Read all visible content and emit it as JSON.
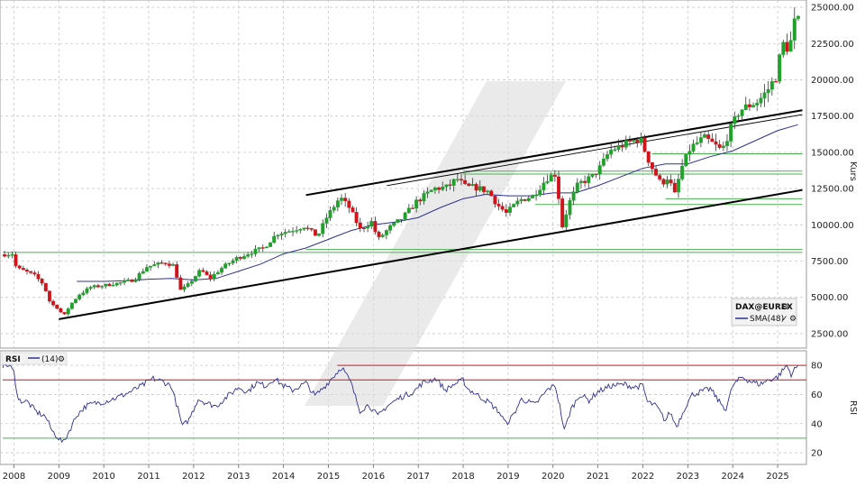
{
  "chart_data": [
    {
      "type": "candlestick",
      "title": "",
      "ylabel": "Kurs",
      "ylim": [
        1500,
        25500
      ],
      "y_ticks": [
        2500,
        5000,
        7500,
        10000,
        12500,
        15000,
        17500,
        20000,
        22500,
        25000
      ],
      "y_tick_labels": [
        "2500.00",
        "5000.00",
        "7500.00",
        "10000.00",
        "12500.00",
        "15000.00",
        "17500.00",
        "20000.00",
        "22500.00",
        "25000.00"
      ],
      "x_range": [
        2007.75,
        2025.5
      ],
      "x_ticks": [
        2008,
        2009,
        2010,
        2011,
        2012,
        2013,
        2014,
        2015,
        2016,
        2017,
        2018,
        2019,
        2020,
        2021,
        2022,
        2023,
        2024,
        2025
      ],
      "x_tick_labels": [
        "2008",
        "2009",
        "2010",
        "2011",
        "2012",
        "2013",
        "2014",
        "2015",
        "2016",
        "2017",
        "2018",
        "2019",
        "2020",
        "2021",
        "2022",
        "2023",
        "2024",
        "2025"
      ],
      "grid": true,
      "legend": {
        "placement": "bottom-right",
        "instrument": "DAX@EUREX",
        "series": [
          {
            "name": "SMA(48)",
            "color": "#2e3192"
          }
        ]
      },
      "colors": {
        "up": "#1fa12a",
        "down": "#d0141b",
        "sma": "#2e3192",
        "trend": "#000000",
        "support": "#4caf50"
      },
      "price_path": [
        [
          2007.75,
          7950
        ],
        [
          2008.0,
          8000
        ],
        [
          2008.1,
          7000
        ],
        [
          2008.3,
          6800
        ],
        [
          2008.5,
          6500
        ],
        [
          2008.7,
          5900
        ],
        [
          2008.85,
          4600
        ],
        [
          2009.0,
          4300
        ],
        [
          2009.15,
          3700
        ],
        [
          2009.3,
          4500
        ],
        [
          2009.5,
          5200
        ],
        [
          2009.75,
          5700
        ],
        [
          2010.0,
          5800
        ],
        [
          2010.4,
          6000
        ],
        [
          2010.7,
          6200
        ],
        [
          2011.0,
          7100
        ],
        [
          2011.4,
          7400
        ],
        [
          2011.6,
          7200
        ],
        [
          2011.75,
          5500
        ],
        [
          2011.9,
          5800
        ],
        [
          2012.2,
          6900
        ],
        [
          2012.4,
          6300
        ],
        [
          2012.7,
          7100
        ],
        [
          2013.0,
          7700
        ],
        [
          2013.4,
          8200
        ],
        [
          2013.6,
          8400
        ],
        [
          2013.9,
          9400
        ],
        [
          2014.2,
          9600
        ],
        [
          2014.5,
          9900
        ],
        [
          2014.8,
          9200
        ],
        [
          2015.0,
          10500
        ],
        [
          2015.3,
          11900
        ],
        [
          2015.5,
          11200
        ],
        [
          2015.75,
          9700
        ],
        [
          2016.0,
          10200
        ],
        [
          2016.15,
          9000
        ],
        [
          2016.4,
          9800
        ],
        [
          2016.7,
          10500
        ],
        [
          2017.0,
          11600
        ],
        [
          2017.4,
          12500
        ],
        [
          2017.7,
          12600
        ],
        [
          2017.9,
          13200
        ],
        [
          2018.1,
          12600
        ],
        [
          2018.3,
          12600
        ],
        [
          2018.6,
          12300
        ],
        [
          2018.8,
          11400
        ],
        [
          2019.0,
          10800
        ],
        [
          2019.3,
          11700
        ],
        [
          2019.6,
          12000
        ],
        [
          2019.9,
          13200
        ],
        [
          2020.1,
          13500
        ],
        [
          2020.25,
          9900
        ],
        [
          2020.4,
          11500
        ],
        [
          2020.6,
          12800
        ],
        [
          2020.9,
          13300
        ],
        [
          2021.1,
          14000
        ],
        [
          2021.3,
          15100
        ],
        [
          2021.6,
          15500
        ],
        [
          2021.9,
          15900
        ],
        [
          2022.0,
          15800
        ],
        [
          2022.2,
          14200
        ],
        [
          2022.45,
          12800
        ],
        [
          2022.6,
          13300
        ],
        [
          2022.75,
          12100
        ],
        [
          2022.9,
          13900
        ],
        [
          2023.1,
          15300
        ],
        [
          2023.4,
          16000
        ],
        [
          2023.6,
          15600
        ],
        [
          2023.8,
          15100
        ],
        [
          2024.0,
          16700
        ],
        [
          2024.2,
          17900
        ],
        [
          2024.45,
          18300
        ],
        [
          2024.6,
          18500
        ],
        [
          2024.8,
          19200
        ],
        [
          2025.0,
          20200
        ],
        [
          2025.15,
          22500
        ],
        [
          2025.3,
          22100
        ],
        [
          2025.42,
          24000
        ]
      ],
      "sma_path": [
        [
          2009.4,
          6100
        ],
        [
          2010.0,
          6100
        ],
        [
          2010.5,
          6150
        ],
        [
          2011.0,
          6250
        ],
        [
          2011.5,
          6300
        ],
        [
          2012.0,
          6200
        ],
        [
          2012.5,
          6300
        ],
        [
          2013.0,
          6800
        ],
        [
          2013.5,
          7300
        ],
        [
          2014.0,
          8000
        ],
        [
          2014.5,
          8400
        ],
        [
          2015.0,
          9000
        ],
        [
          2015.5,
          9600
        ],
        [
          2016.0,
          10000
        ],
        [
          2016.5,
          10200
        ],
        [
          2017.0,
          10500
        ],
        [
          2017.5,
          11200
        ],
        [
          2018.0,
          11800
        ],
        [
          2018.5,
          12100
        ],
        [
          2019.0,
          12000
        ],
        [
          2019.5,
          12000
        ],
        [
          2020.0,
          12200
        ],
        [
          2020.5,
          12200
        ],
        [
          2021.0,
          12700
        ],
        [
          2021.5,
          13300
        ],
        [
          2022.0,
          13900
        ],
        [
          2022.5,
          14200
        ],
        [
          2023.0,
          14200
        ],
        [
          2023.5,
          14700
        ],
        [
          2024.0,
          15100
        ],
        [
          2024.5,
          15800
        ],
        [
          2025.0,
          16500
        ],
        [
          2025.45,
          16900
        ]
      ],
      "trend_lines": [
        {
          "from": [
            2009.0,
            3500
          ],
          "to": [
            2025.55,
            12400
          ],
          "weight": "bold"
        },
        {
          "from": [
            2014.5,
            12050
          ],
          "to": [
            2025.55,
            17900
          ],
          "weight": "bold"
        },
        {
          "from": [
            2016.3,
            12700
          ],
          "to": [
            2025.55,
            17600
          ],
          "weight": "thin"
        }
      ],
      "support_lines": [
        {
          "level": 8100,
          "from": 2007.75,
          "to": 2025.55
        },
        {
          "level": 8300,
          "from": 2014.5,
          "to": 2025.55
        },
        {
          "level": 11400,
          "from": 2019.6,
          "to": 2025.55
        },
        {
          "level": 11800,
          "from": 2022.5,
          "to": 2025.55
        },
        {
          "level": 13500,
          "from": 2018.0,
          "to": 2025.55
        },
        {
          "level": 13700,
          "from": 2018.0,
          "to": 2025.55
        },
        {
          "level": 14900,
          "from": 2022.2,
          "to": 2025.55
        }
      ]
    },
    {
      "type": "line",
      "title": "RSI",
      "period_label": "(14)",
      "ylabel": "RSI",
      "ylim": [
        12,
        90
      ],
      "y_ticks": [
        20,
        40,
        60,
        80
      ],
      "y_tick_labels": [
        "20",
        "40",
        "60",
        "80"
      ],
      "x_range": [
        2007.75,
        2025.5
      ],
      "levels": [
        {
          "value": 80,
          "color": "#d0141b",
          "from": 2015.2
        },
        {
          "value": 70,
          "color": "#d0141b",
          "from": 2007.75
        },
        {
          "value": 30,
          "color": "#4caf50",
          "from": 2007.75
        }
      ],
      "series": [
        {
          "name": "",
          "color": "#2e3192",
          "values": [
            [
              2007.75,
              80
            ],
            [
              2007.9,
              80
            ],
            [
              2008.0,
              75
            ],
            [
              2008.1,
              56
            ],
            [
              2008.3,
              55
            ],
            [
              2008.5,
              48
            ],
            [
              2008.7,
              45
            ],
            [
              2008.85,
              35
            ],
            [
              2009.0,
              30
            ],
            [
              2009.1,
              27
            ],
            [
              2009.2,
              33
            ],
            [
              2009.4,
              46
            ],
            [
              2009.6,
              52
            ],
            [
              2009.8,
              54
            ],
            [
              2010.0,
              55
            ],
            [
              2010.3,
              58
            ],
            [
              2010.6,
              62
            ],
            [
              2010.9,
              67
            ],
            [
              2011.1,
              71
            ],
            [
              2011.3,
              69
            ],
            [
              2011.5,
              66
            ],
            [
              2011.65,
              50
            ],
            [
              2011.75,
              38
            ],
            [
              2011.9,
              43
            ],
            [
              2012.1,
              57
            ],
            [
              2012.3,
              54
            ],
            [
              2012.5,
              52
            ],
            [
              2012.8,
              60
            ],
            [
              2013.0,
              65
            ],
            [
              2013.2,
              62
            ],
            [
              2013.4,
              68
            ],
            [
              2013.6,
              66
            ],
            [
              2013.8,
              71
            ],
            [
              2014.0,
              66
            ],
            [
              2014.2,
              63
            ],
            [
              2014.5,
              68
            ],
            [
              2014.7,
              59
            ],
            [
              2014.9,
              65
            ],
            [
              2015.1,
              72
            ],
            [
              2015.3,
              79
            ],
            [
              2015.5,
              68
            ],
            [
              2015.7,
              49
            ],
            [
              2015.9,
              53
            ],
            [
              2016.1,
              45
            ],
            [
              2016.3,
              52
            ],
            [
              2016.6,
              58
            ],
            [
              2016.9,
              62
            ],
            [
              2017.1,
              68
            ],
            [
              2017.4,
              71
            ],
            [
              2017.6,
              63
            ],
            [
              2017.8,
              67
            ],
            [
              2018.0,
              70
            ],
            [
              2018.1,
              64
            ],
            [
              2018.3,
              60
            ],
            [
              2018.6,
              54
            ],
            [
              2018.8,
              48
            ],
            [
              2018.95,
              40
            ],
            [
              2019.1,
              45
            ],
            [
              2019.3,
              57
            ],
            [
              2019.6,
              53
            ],
            [
              2019.9,
              64
            ],
            [
              2020.05,
              66
            ],
            [
              2020.15,
              52
            ],
            [
              2020.25,
              35
            ],
            [
              2020.4,
              50
            ],
            [
              2020.6,
              60
            ],
            [
              2020.8,
              56
            ],
            [
              2021.0,
              62
            ],
            [
              2021.3,
              66
            ],
            [
              2021.6,
              67
            ],
            [
              2021.8,
              65
            ],
            [
              2022.0,
              66
            ],
            [
              2022.1,
              55
            ],
            [
              2022.3,
              52
            ],
            [
              2022.5,
              42
            ],
            [
              2022.6,
              48
            ],
            [
              2022.75,
              38
            ],
            [
              2022.95,
              52
            ],
            [
              2023.1,
              60
            ],
            [
              2023.3,
              62
            ],
            [
              2023.5,
              64
            ],
            [
              2023.7,
              55
            ],
            [
              2023.85,
              50
            ],
            [
              2024.0,
              66
            ],
            [
              2024.2,
              72
            ],
            [
              2024.4,
              69
            ],
            [
              2024.6,
              67
            ],
            [
              2024.8,
              70
            ],
            [
              2025.0,
              72
            ],
            [
              2025.2,
              80
            ],
            [
              2025.3,
              74
            ],
            [
              2025.45,
              80
            ]
          ]
        }
      ]
    }
  ]
}
